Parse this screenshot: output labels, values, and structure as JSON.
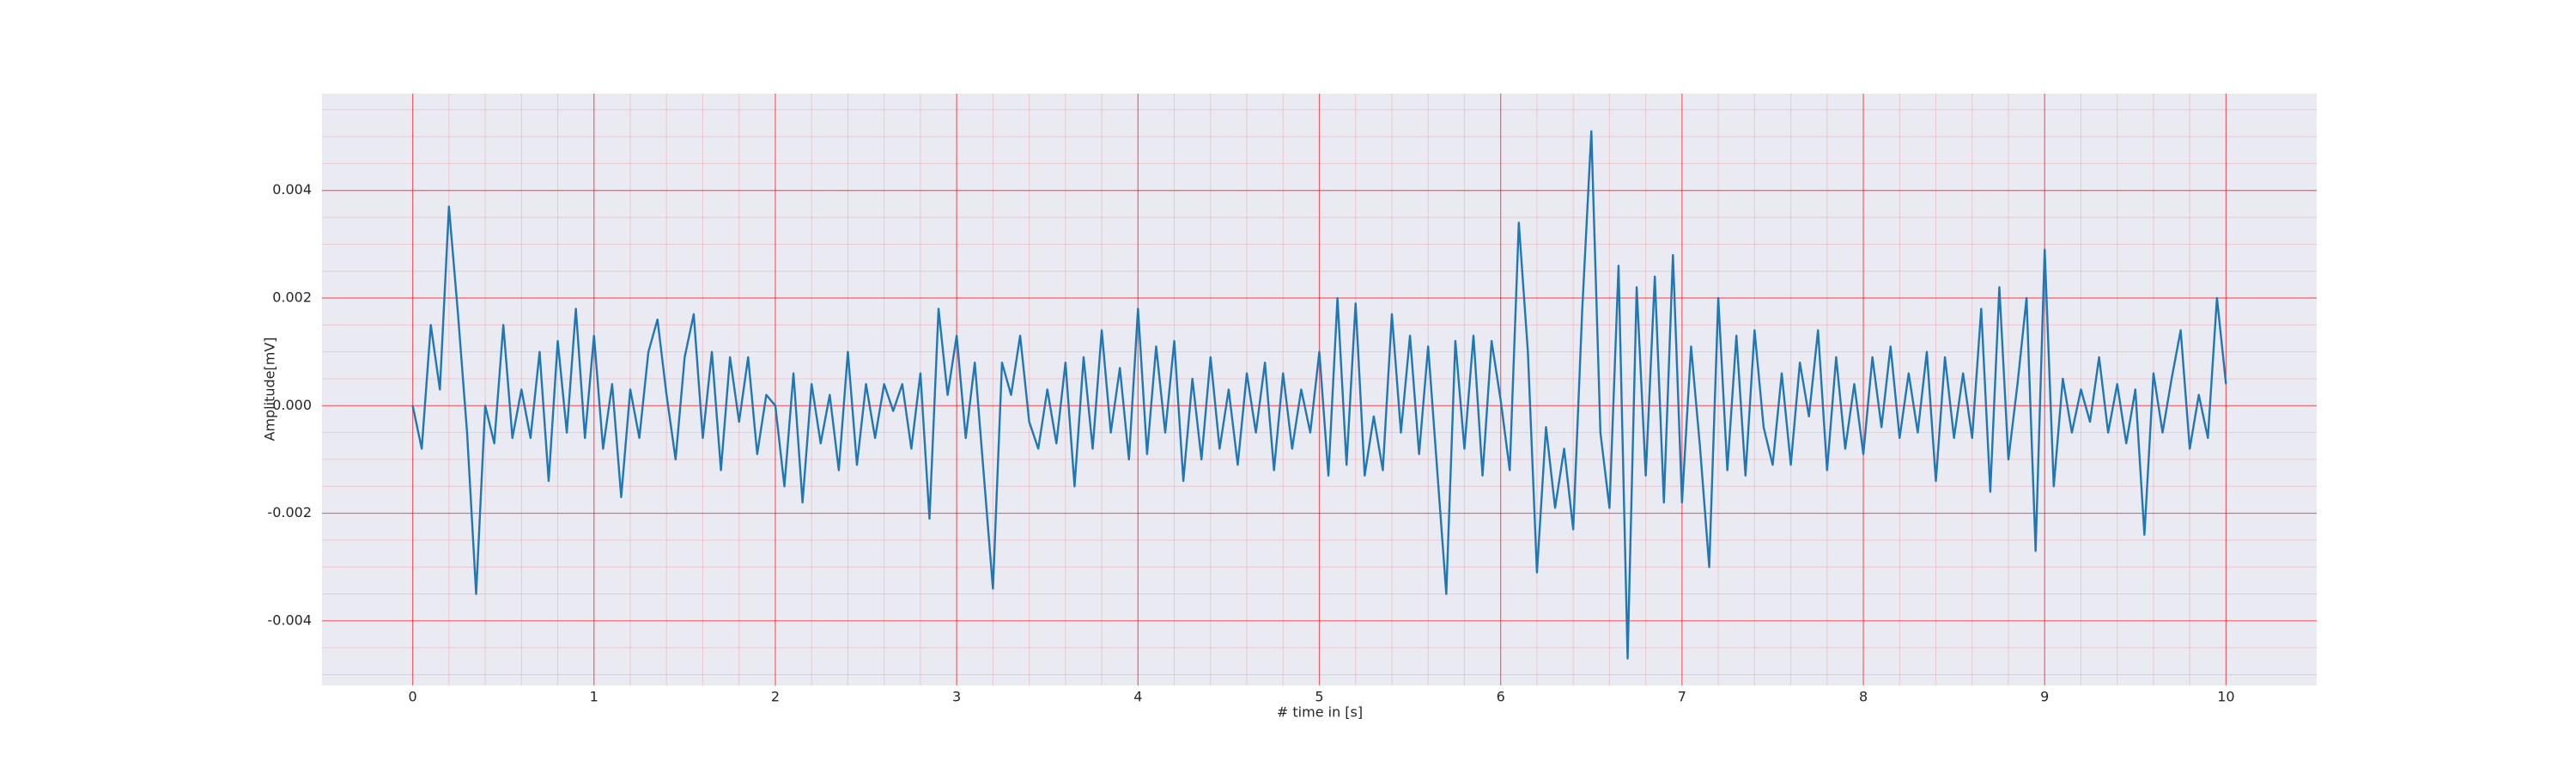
{
  "chart_data": {
    "type": "line",
    "xlabel": "# time in [s]",
    "ylabel": "Amplitude[mV]",
    "x": [
      0,
      0.05,
      0.1,
      0.15,
      0.2,
      0.25,
      0.3,
      0.35,
      0.4,
      0.45,
      0.5,
      0.55,
      0.6,
      0.65,
      0.7,
      0.75,
      0.8,
      0.85,
      0.9,
      0.95,
      1,
      1.05,
      1.1,
      1.15,
      1.2,
      1.25,
      1.3,
      1.35,
      1.4,
      1.45,
      1.5,
      1.55,
      1.6,
      1.65,
      1.7,
      1.75,
      1.8,
      1.85,
      1.9,
      1.95,
      2,
      2.05,
      2.1,
      2.15,
      2.2,
      2.25,
      2.3,
      2.35,
      2.4,
      2.45,
      2.5,
      2.55,
      2.6,
      2.65,
      2.7,
      2.75,
      2.8,
      2.85,
      2.9,
      2.95,
      3,
      3.05,
      3.1,
      3.15,
      3.2,
      3.25,
      3.3,
      3.35,
      3.4,
      3.45,
      3.5,
      3.55,
      3.6,
      3.65,
      3.7,
      3.75,
      3.8,
      3.85,
      3.9,
      3.95,
      4,
      4.05,
      4.1,
      4.15,
      4.2,
      4.25,
      4.3,
      4.35,
      4.4,
      4.45,
      4.5,
      4.55,
      4.6,
      4.65,
      4.7,
      4.75,
      4.8,
      4.85,
      4.9,
      4.95,
      5,
      5.05,
      5.1,
      5.15,
      5.2,
      5.25,
      5.3,
      5.35,
      5.4,
      5.45,
      5.5,
      5.55,
      5.6,
      5.65,
      5.7,
      5.75,
      5.8,
      5.85,
      5.9,
      5.95,
      6,
      6.05,
      6.1,
      6.15,
      6.2,
      6.25,
      6.3,
      6.35,
      6.4,
      6.45,
      6.5,
      6.55,
      6.6,
      6.65,
      6.7,
      6.75,
      6.8,
      6.85,
      6.9,
      6.95,
      7,
      7.05,
      7.1,
      7.15,
      7.2,
      7.25,
      7.3,
      7.35,
      7.4,
      7.45,
      7.5,
      7.55,
      7.6,
      7.65,
      7.7,
      7.75,
      7.8,
      7.85,
      7.9,
      7.95,
      8,
      8.05,
      8.1,
      8.15,
      8.2,
      8.25,
      8.3,
      8.35,
      8.4,
      8.45,
      8.5,
      8.55,
      8.6,
      8.65,
      8.7,
      8.75,
      8.8,
      8.85,
      8.9,
      8.95,
      9,
      9.05,
      9.1,
      9.15,
      9.2,
      9.25,
      9.3,
      9.35,
      9.4,
      9.45,
      9.5,
      9.55,
      9.6,
      9.65,
      9.7,
      9.75,
      9.8,
      9.85,
      9.9,
      9.95,
      10
    ],
    "series": [
      {
        "color": "#1f77b4",
        "values": [
          0,
          -0.0008,
          0.0015,
          0.0003,
          0.0037,
          0.0017,
          -0.0005,
          -0.0035,
          0,
          -0.0007,
          0.0015,
          -0.0006,
          0.0003,
          -0.0006,
          0.001,
          -0.0014,
          0.0012,
          -0.0005,
          0.0018,
          -0.0006,
          0.0013,
          -0.0008,
          0.0004,
          -0.0017,
          0.0003,
          -0.0006,
          0.001,
          0.0016,
          0.0002,
          -0.001,
          0.0009,
          0.0017,
          -0.0006,
          0.001,
          -0.0012,
          0.0009,
          -0.0003,
          0.0009,
          -0.0009,
          0.0002,
          0,
          -0.0015,
          0.0006,
          -0.0018,
          0.0004,
          -0.0007,
          0.0002,
          -0.0012,
          0.001,
          -0.0011,
          0.0004,
          -0.0006,
          0.0004,
          -0.0001,
          0.0004,
          -0.0008,
          0.0006,
          -0.0021,
          0.0018,
          0.0002,
          0.0013,
          -0.0006,
          0.0008,
          -0.0013,
          -0.0034,
          0.0008,
          0.0002,
          0.0013,
          -0.0003,
          -0.0008,
          0.0003,
          -0.0007,
          0.0008,
          -0.0015,
          0.0009,
          -0.0008,
          0.0014,
          -0.0005,
          0.0007,
          -0.001,
          0.0018,
          -0.0009,
          0.0011,
          -0.0005,
          0.0012,
          -0.0014,
          0.0005,
          -0.001,
          0.0009,
          -0.0008,
          0.0003,
          -0.0011,
          0.0006,
          -0.0005,
          0.0008,
          -0.0012,
          0.0006,
          -0.0008,
          0.0003,
          -0.0005,
          0.001,
          -0.0013,
          0.002,
          -0.0011,
          0.0019,
          -0.0013,
          -0.0002,
          -0.0012,
          0.0017,
          -0.0005,
          0.0013,
          -0.0009,
          0.0011,
          -0.0012,
          -0.0035,
          0.0012,
          -0.0008,
          0.0013,
          -0.0013,
          0.0012,
          0.0001,
          -0.0012,
          0.0034,
          0.001,
          -0.0031,
          -0.0004,
          -0.0019,
          -0.0008,
          -0.0023,
          0.0018,
          0.0051,
          -0.0005,
          -0.0019,
          0.0026,
          -0.0047,
          0.0022,
          -0.0013,
          0.0024,
          -0.0018,
          0.0028,
          -0.0018,
          0.0011,
          -0.0008,
          -0.003,
          0.002,
          -0.0012,
          0.0013,
          -0.0013,
          0.0014,
          -0.0004,
          -0.0011,
          0.0006,
          -0.0011,
          0.0008,
          -0.0002,
          0.0014,
          -0.0012,
          0.0009,
          -0.0008,
          0.0004,
          -0.0009,
          0.0009,
          -0.0004,
          0.0011,
          -0.0006,
          0.0006,
          -0.0005,
          0.001,
          -0.0014,
          0.0009,
          -0.0006,
          0.0006,
          -0.0006,
          0.0018,
          -0.0016,
          0.0022,
          -0.001,
          0.0004,
          0.002,
          -0.0027,
          0.0029,
          -0.0015,
          0.0005,
          -0.0005,
          0.0003,
          -0.0003,
          0.0009,
          -0.0005,
          0.0004,
          -0.0007,
          0.0003,
          -0.0024,
          0.0006,
          -0.0005,
          0.0005,
          0.0014,
          -0.0008,
          0.0002,
          -0.0006,
          0.002,
          0.0004
        ]
      }
    ],
    "xlim": [
      -0.5,
      10.5
    ],
    "xticks": [
      0,
      1,
      2,
      3,
      4,
      5,
      6,
      7,
      8,
      9,
      10
    ],
    "ylim": [
      -0.0052,
      0.0058
    ],
    "yticks": [
      -0.004,
      -0.002,
      {
        "value": 0,
        "label": "0.000"
      },
      0.002,
      0.004
    ],
    "grid": true,
    "grid_color": "#ff0000",
    "background": "#eaeaf2"
  }
}
